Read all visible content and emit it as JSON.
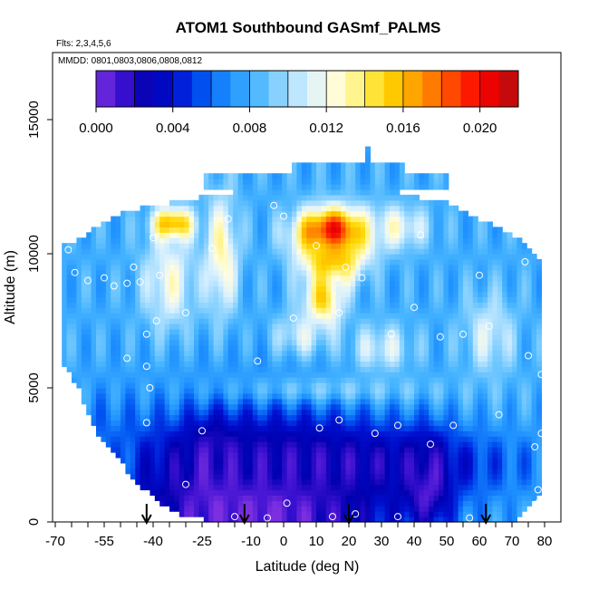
{
  "chart_data": {
    "type": "heatmap",
    "title": "ATOM1 Southbound GASmf_PALMS",
    "notes": [
      "Flts: 2,3,4,5,6",
      "MMDD: 0801,0803,0806,0808,0812"
    ],
    "xlabel": "Latitude (deg N)",
    "ylabel": "Altitude (m)",
    "xlim": [
      -70,
      80
    ],
    "ylim": [
      0,
      17500
    ],
    "x_ticks": [
      -70,
      -55,
      -40,
      -25,
      -10,
      0,
      10,
      20,
      30,
      40,
      50,
      60,
      70,
      80
    ],
    "x_tick_labels": [
      "-70",
      "-55",
      "-40",
      "-25",
      "-10",
      "0",
      "10",
      "20",
      "30",
      "40",
      "50",
      "60",
      "70",
      "80"
    ],
    "y_ticks": [
      0,
      5000,
      10000,
      15000
    ],
    "y_tick_labels": [
      "0",
      "5000",
      "10000",
      "15000"
    ],
    "colorbar": {
      "range": [
        0,
        0.022
      ],
      "tick_values": [
        0,
        0.004,
        0.008,
        0.012,
        0.016,
        0.02
      ],
      "tick_labels": [
        "0.000",
        "0.004",
        "0.008",
        "0.012",
        "0.016",
        "0.020"
      ],
      "colors": [
        "#7b2fe0",
        "#3a10d0",
        "#0000b0",
        "#0010d0",
        "#0050f0",
        "#1e90ff",
        "#46b4ff",
        "#8fd4ff",
        "#d8f0ff",
        "#fffde0",
        "#fff27a",
        "#ffd700",
        "#ffa500",
        "#ff6a00",
        "#ff2000",
        "#e80000",
        "#b01010"
      ]
    },
    "arrows_latitude": [
      -42,
      -12,
      20,
      62
    ],
    "grid": false,
    "legend": "top (color bar)",
    "surface": {
      "lat_range": [
        -68,
        79
      ],
      "top_altitude_by_lat": [
        [
          -68,
          10300
        ],
        [
          -63,
          10500
        ],
        [
          -58,
          11000
        ],
        [
          -50,
          11500
        ],
        [
          -40,
          11800
        ],
        [
          -30,
          12000
        ],
        [
          -22,
          12200
        ],
        [
          -15,
          12300
        ],
        [
          -5,
          12400
        ],
        [
          5,
          12400
        ],
        [
          15,
          12500
        ],
        [
          25,
          12500
        ],
        [
          35,
          12300
        ],
        [
          45,
          12000
        ],
        [
          50,
          11900
        ],
        [
          56,
          11500
        ],
        [
          62,
          11200
        ],
        [
          68,
          10800
        ],
        [
          74,
          10400
        ],
        [
          79,
          9600
        ]
      ],
      "bottom_altitude_by_lat": [
        [
          -68,
          6000
        ],
        [
          -63,
          5000
        ],
        [
          -58,
          3500
        ],
        [
          -52,
          2500
        ],
        [
          -45,
          1500
        ],
        [
          -38,
          700
        ],
        [
          -30,
          200
        ],
        [
          -20,
          0
        ],
        [
          70,
          0
        ],
        [
          74,
          500
        ],
        [
          79,
          1000
        ]
      ],
      "extra_top_bands": [
        {
          "lat": [
            -25,
            50
          ],
          "alt": [
            12400,
            13000
          ]
        },
        {
          "lat": [
            3,
            37
          ],
          "alt": [
            13000,
            13400
          ]
        },
        {
          "lat": [
            25,
            26
          ],
          "alt": [
            13400,
            14000
          ]
        }
      ],
      "background_value": 0.008,
      "features": [
        {
          "lat": -8,
          "alt": 400,
          "sx": 45,
          "sy": 3500,
          "value": 0.0
        },
        {
          "lat": -22,
          "alt": 1800,
          "sx": 7,
          "sy": 1600,
          "value": 0.0
        },
        {
          "lat": 44,
          "alt": 1500,
          "sx": 7,
          "sy": 1600,
          "value": 0.0
        },
        {
          "lat": 10,
          "alt": 2200,
          "sx": 55,
          "sy": 1300,
          "value": 0.002
        },
        {
          "lat": -55,
          "alt": 2500,
          "sx": 10,
          "sy": 2000,
          "value": 0.006
        },
        {
          "lat": 15,
          "alt": 10800,
          "sx": 11,
          "sy": 900,
          "value": 0.021
        },
        {
          "lat": 15,
          "alt": 9800,
          "sx": 9,
          "sy": 900,
          "value": 0.016
        },
        {
          "lat": 12,
          "alt": 8300,
          "sx": 6,
          "sy": 1100,
          "value": 0.015
        },
        {
          "lat": -34,
          "alt": 11100,
          "sx": 6,
          "sy": 600,
          "value": 0.018
        },
        {
          "lat": -19,
          "alt": 10000,
          "sx": 5,
          "sy": 2200,
          "value": 0.013
        },
        {
          "lat": -35,
          "alt": 9000,
          "sx": 8,
          "sy": 1800,
          "value": 0.012
        },
        {
          "lat": 35,
          "alt": 11000,
          "sx": 9,
          "sy": 800,
          "value": 0.012
        },
        {
          "lat": 5,
          "alt": 7000,
          "sx": 8,
          "sy": 800,
          "value": 0.011
        },
        {
          "lat": 30,
          "alt": 6500,
          "sx": 10,
          "sy": 900,
          "value": 0.011
        },
        {
          "lat": 63,
          "alt": 7000,
          "sx": 8,
          "sy": 1500,
          "value": 0.011
        },
        {
          "lat": 20,
          "alt": 5000,
          "sx": 40,
          "sy": 500,
          "value": 0.009
        }
      ]
    },
    "sample_points": [
      [
        -66,
        10150
      ],
      [
        -64,
        9300
      ],
      [
        -60,
        9000
      ],
      [
        -55,
        9100
      ],
      [
        -52,
        8800
      ],
      [
        -46,
        9500
      ],
      [
        -44,
        8950
      ],
      [
        -48,
        8900
      ],
      [
        -40,
        10600
      ],
      [
        -38,
        9200
      ],
      [
        -39,
        7500
      ],
      [
        -42,
        7000
      ],
      [
        -42,
        5800
      ],
      [
        -41,
        5000
      ],
      [
        -48,
        6100
      ],
      [
        -42,
        3700
      ],
      [
        -58,
        2100
      ],
      [
        -52,
        2000
      ],
      [
        -30,
        1400
      ],
      [
        -30,
        7800
      ],
      [
        -17,
        11300
      ],
      [
        -22,
        10200
      ],
      [
        -25,
        3400
      ],
      [
        -15,
        200
      ],
      [
        -8,
        6000
      ],
      [
        -5,
        150
      ],
      [
        -3,
        11800
      ],
      [
        0,
        11400
      ],
      [
        1,
        700
      ],
      [
        3,
        7600
      ],
      [
        10,
        10300
      ],
      [
        11,
        3500
      ],
      [
        15,
        200
      ],
      [
        17,
        3800
      ],
      [
        17,
        7800
      ],
      [
        19,
        9500
      ],
      [
        22,
        300
      ],
      [
        24,
        9100
      ],
      [
        28,
        3300
      ],
      [
        33,
        7000
      ],
      [
        35,
        200
      ],
      [
        35,
        3600
      ],
      [
        40,
        8000
      ],
      [
        42,
        10700
      ],
      [
        45,
        2900
      ],
      [
        48,
        6900
      ],
      [
        52,
        3600
      ],
      [
        55,
        7000
      ],
      [
        57,
        150
      ],
      [
        60,
        9200
      ],
      [
        63,
        7300
      ],
      [
        66,
        4000
      ],
      [
        74,
        9700
      ],
      [
        75,
        6200
      ],
      [
        77,
        2800
      ],
      [
        78,
        1200
      ],
      [
        78,
        700
      ],
      [
        79,
        3300
      ],
      [
        79,
        5500
      ]
    ]
  }
}
